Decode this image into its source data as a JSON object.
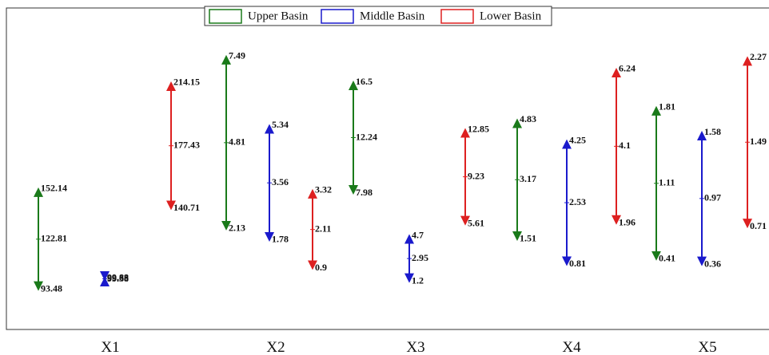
{
  "chart_data": {
    "type": "range",
    "categories": [
      "X1",
      "X2",
      "X3",
      "X4",
      "X5"
    ],
    "ylims": [
      [
        70,
        258
      ],
      [
        -1,
        9
      ],
      [
        -2.5,
        22.2
      ],
      [
        -1,
        7.95
      ],
      [
        -0.24,
        2.73
      ]
    ],
    "series": [
      {
        "name": "Upper Basin",
        "color": "#1a7a1a",
        "max": [
          152.14,
          7.49,
          16.5,
          4.83,
          1.81
        ],
        "mean": [
          122.81,
          4.81,
          12.24,
          3.17,
          1.11
        ],
        "min": [
          93.48,
          2.13,
          7.98,
          1.51,
          0.41
        ]
      },
      {
        "name": "Middle Basin",
        "color": "#1a1acc",
        "max": [
          99.88,
          5.34,
          4.7,
          4.25,
          1.58
        ],
        "mean": [
          99.63,
          3.56,
          2.95,
          2.53,
          0.97
        ],
        "min": [
          99.38,
          1.78,
          1.2,
          0.81,
          0.36
        ]
      },
      {
        "name": "Lower Basin",
        "color": "#dd2020",
        "max": [
          214.15,
          3.32,
          12.85,
          6.24,
          2.27
        ],
        "mean": [
          177.43,
          2.11,
          9.23,
          4.1,
          1.49
        ],
        "min": [
          140.71,
          0.9,
          5.61,
          1.96,
          0.71
        ]
      }
    ]
  }
}
